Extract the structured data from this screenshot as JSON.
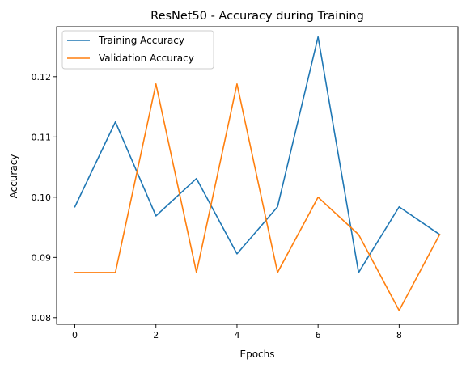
{
  "chart_data": {
    "type": "line",
    "title": "ResNet50 - Accuracy during Training",
    "xlabel": "Epochs",
    "ylabel": "Accuracy",
    "x": [
      0,
      1,
      2,
      3,
      4,
      5,
      6,
      7,
      8,
      9
    ],
    "xlim": [
      -0.45,
      9.45
    ],
    "ylim": [
      0.0789,
      0.1283
    ],
    "xticks": [
      0,
      2,
      4,
      6,
      8
    ],
    "xtick_labels": [
      "0",
      "2",
      "4",
      "6",
      "8"
    ],
    "yticks": [
      0.08,
      0.09,
      0.1,
      0.11,
      0.12
    ],
    "ytick_labels": [
      "0.08",
      "0.09",
      "0.10",
      "0.11",
      "0.12"
    ],
    "grid": false,
    "legend_position": "top-left",
    "series": [
      {
        "name": "Training Accuracy",
        "color": "#1f77b4",
        "values": [
          0.0984,
          0.1125,
          0.0969,
          0.1031,
          0.0906,
          0.0984,
          0.1266,
          0.0875,
          0.0984,
          0.0938
        ]
      },
      {
        "name": "Validation Accuracy",
        "color": "#ff7f0e",
        "values": [
          0.0875,
          0.0875,
          0.1188,
          0.0875,
          0.1188,
          0.0875,
          0.1,
          0.0938,
          0.0812,
          0.0938
        ]
      }
    ]
  }
}
